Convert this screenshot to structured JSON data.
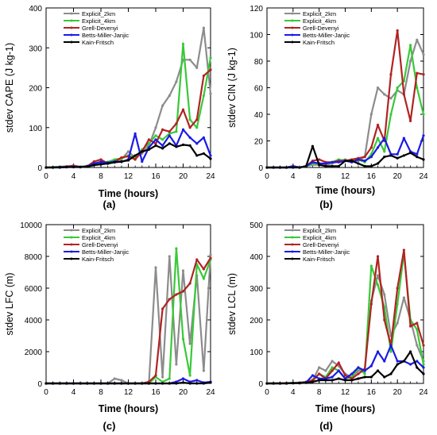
{
  "chart_data": [
    {
      "panel_label": "(a)",
      "type": "line",
      "ylabel": "stdev CAPE (J kg-1)",
      "xlabel": "Time (hours)",
      "ylim": [
        0,
        400
      ],
      "yticks": [
        0,
        100,
        200,
        300,
        400
      ],
      "xlim": [
        0,
        24
      ],
      "xticks": [
        0,
        4,
        8,
        12,
        16,
        20,
        24
      ],
      "x": [
        0,
        1,
        2,
        3,
        4,
        5,
        6,
        7,
        8,
        9,
        10,
        11,
        12,
        13,
        14,
        15,
        16,
        17,
        18,
        19,
        20,
        21,
        22,
        23,
        24
      ],
      "series": [
        {
          "name": "Explicit_2km",
          "values": [
            0,
            1,
            2,
            3,
            5,
            2,
            3,
            10,
            14,
            12,
            18,
            20,
            40,
            25,
            35,
            55,
            100,
            155,
            180,
            215,
            270,
            270,
            250,
            350,
            185
          ]
        },
        {
          "name": "Explicit_4km",
          "values": [
            0,
            1,
            2,
            1,
            3,
            2,
            4,
            8,
            12,
            14,
            20,
            22,
            30,
            25,
            45,
            60,
            80,
            70,
            85,
            90,
            310,
            120,
            100,
            180,
            275
          ]
        },
        {
          "name": "Grell-Devenyi",
          "values": [
            0,
            0,
            1,
            2,
            4,
            1,
            3,
            15,
            20,
            10,
            15,
            25,
            28,
            20,
            40,
            70,
            60,
            95,
            90,
            110,
            145,
            100,
            120,
            230,
            245
          ]
        },
        {
          "name": "Betts-Miller-Janjic",
          "values": [
            0,
            0,
            1,
            1,
            2,
            1,
            3,
            10,
            14,
            12,
            15,
            14,
            20,
            85,
            15,
            50,
            70,
            55,
            80,
            55,
            95,
            75,
            60,
            75,
            30
          ]
        },
        {
          "name": "Kain-Fritsch",
          "values": [
            0,
            0,
            0,
            1,
            1,
            1,
            2,
            6,
            8,
            10,
            13,
            15,
            18,
            30,
            40,
            45,
            55,
            48,
            60,
            52,
            57,
            55,
            30,
            35,
            22
          ]
        }
      ]
    },
    {
      "panel_label": "(b)",
      "type": "line",
      "ylabel": "stdev CIN (J kg-1)",
      "xlabel": "Time (hours)",
      "ylim": [
        0,
        120
      ],
      "yticks": [
        0,
        20,
        40,
        60,
        80,
        100,
        120
      ],
      "xlim": [
        0,
        24
      ],
      "xticks": [
        0,
        4,
        8,
        12,
        16,
        20,
        24
      ],
      "x": [
        0,
        1,
        2,
        3,
        4,
        5,
        6,
        7,
        8,
        9,
        10,
        11,
        12,
        13,
        14,
        15,
        16,
        17,
        18,
        19,
        20,
        21,
        22,
        23,
        24
      ],
      "series": [
        {
          "name": "Explicit_2km",
          "values": [
            0,
            0,
            0,
            0,
            1,
            0,
            1,
            2,
            2,
            2,
            3,
            5,
            6,
            4,
            5,
            8,
            40,
            60,
            55,
            52,
            58,
            55,
            80,
            96,
            85
          ]
        },
        {
          "name": "Explicit_4km",
          "values": [
            0,
            0,
            0,
            0,
            1,
            0,
            1,
            3,
            3,
            3,
            4,
            6,
            5,
            5,
            6,
            4,
            10,
            22,
            12,
            40,
            60,
            65,
            92,
            60,
            40
          ]
        },
        {
          "name": "Grell-Devenyi",
          "values": [
            0,
            0,
            0,
            0,
            1,
            0,
            1,
            5,
            6,
            4,
            4,
            5,
            5,
            6,
            7,
            8,
            15,
            32,
            20,
            70,
            103,
            55,
            35,
            71,
            70
          ]
        },
        {
          "name": "Betts-Miller-Janjic",
          "values": [
            0,
            0,
            0,
            0,
            1,
            0,
            1,
            4,
            3,
            3,
            4,
            4,
            5,
            4,
            6,
            5,
            8,
            15,
            22,
            10,
            10,
            22,
            12,
            10,
            24
          ]
        },
        {
          "name": "Kain-Fritsch",
          "values": [
            0,
            0,
            0,
            0,
            0,
            0,
            1,
            16,
            2,
            1,
            1,
            1,
            5,
            5,
            3,
            1,
            1,
            3,
            8,
            9,
            7,
            9,
            11,
            8,
            6
          ]
        }
      ]
    },
    {
      "panel_label": "(c)",
      "type": "line",
      "ylabel": "stdev LFC (m)",
      "xlabel": "Time (hours)",
      "ylim": [
        0,
        10000
      ],
      "yticks": [
        0,
        2000,
        4000,
        6000,
        8000,
        10000
      ],
      "xlim": [
        0,
        24
      ],
      "xticks": [
        0,
        4,
        8,
        12,
        16,
        20,
        24
      ],
      "x": [
        0,
        1,
        2,
        3,
        4,
        5,
        6,
        7,
        8,
        9,
        10,
        11,
        12,
        13,
        14,
        15,
        16,
        17,
        18,
        19,
        20,
        21,
        22,
        23,
        24
      ],
      "series": [
        {
          "name": "Explicit_2km",
          "values": [
            0,
            0,
            0,
            0,
            0,
            0,
            0,
            0,
            0,
            0,
            300,
            200,
            0,
            0,
            0,
            0,
            7300,
            400,
            8000,
            1200,
            7100,
            2500,
            6800,
            800,
            8100
          ]
        },
        {
          "name": "Explicit_4km",
          "values": [
            0,
            0,
            0,
            0,
            0,
            0,
            0,
            0,
            0,
            0,
            0,
            0,
            0,
            0,
            0,
            0,
            400,
            100,
            300,
            8500,
            2800,
            500,
            7500,
            6600,
            7800
          ]
        },
        {
          "name": "Grell-Devenyi",
          "values": [
            0,
            0,
            0,
            0,
            0,
            0,
            0,
            0,
            0,
            0,
            0,
            0,
            0,
            0,
            0,
            100,
            500,
            4700,
            5300,
            5600,
            5800,
            6300,
            7800,
            7200,
            7900
          ]
        },
        {
          "name": "Betts-Miller-Janjic",
          "values": [
            0,
            0,
            0,
            0,
            0,
            0,
            0,
            0,
            0,
            0,
            0,
            0,
            0,
            0,
            0,
            0,
            0,
            0,
            0,
            100,
            300,
            100,
            200,
            50,
            100
          ]
        },
        {
          "name": "Kain-Fritsch",
          "values": [
            0,
            0,
            0,
            0,
            0,
            0,
            0,
            0,
            0,
            0,
            0,
            0,
            0,
            0,
            0,
            0,
            0,
            0,
            0,
            0,
            50,
            0,
            0,
            0,
            50
          ]
        }
      ]
    },
    {
      "panel_label": "(d)",
      "type": "line",
      "ylabel": "stdev LCL (m)",
      "xlabel": "Time (hours)",
      "ylim": [
        0,
        500
      ],
      "yticks": [
        0,
        100,
        200,
        300,
        400,
        500
      ],
      "xlim": [
        0,
        24
      ],
      "xticks": [
        0,
        4,
        8,
        12,
        16,
        20,
        24
      ],
      "x": [
        0,
        1,
        2,
        3,
        4,
        5,
        6,
        7,
        8,
        9,
        10,
        11,
        12,
        13,
        14,
        15,
        16,
        17,
        18,
        19,
        20,
        21,
        22,
        23,
        24
      ],
      "series": [
        {
          "name": "Explicit_2km",
          "values": [
            0,
            0,
            1,
            1,
            2,
            3,
            5,
            10,
            50,
            40,
            70,
            55,
            30,
            20,
            40,
            45,
            260,
            340,
            280,
            150,
            190,
            270,
            200,
            120,
            70
          ]
        },
        {
          "name": "Explicit_4km",
          "values": [
            0,
            0,
            0,
            1,
            2,
            2,
            4,
            8,
            30,
            20,
            50,
            40,
            15,
            20,
            50,
            30,
            370,
            310,
            240,
            100,
            250,
            410,
            200,
            170,
            60
          ]
        },
        {
          "name": "Grell-Devenyi",
          "values": [
            0,
            0,
            0,
            1,
            1,
            2,
            4,
            10,
            30,
            15,
            40,
            65,
            25,
            15,
            30,
            45,
            250,
            400,
            200,
            120,
            300,
            420,
            180,
            190,
            120
          ]
        },
        {
          "name": "Betts-Miller-Janjic",
          "values": [
            0,
            0,
            0,
            0,
            1,
            1,
            3,
            25,
            15,
            15,
            20,
            40,
            15,
            30,
            50,
            40,
            55,
            100,
            70,
            120,
            70,
            70,
            60,
            70,
            50
          ]
        },
        {
          "name": "Kain-Fritsch",
          "values": [
            0,
            0,
            0,
            0,
            1,
            1,
            2,
            5,
            10,
            10,
            10,
            15,
            10,
            10,
            15,
            20,
            20,
            40,
            20,
            30,
            60,
            70,
            100,
            50,
            30
          ]
        }
      ]
    }
  ],
  "series_colors": [
    "#8c8c8c",
    "#38c938",
    "#b22222",
    "#1a1ae6",
    "#000000"
  ]
}
